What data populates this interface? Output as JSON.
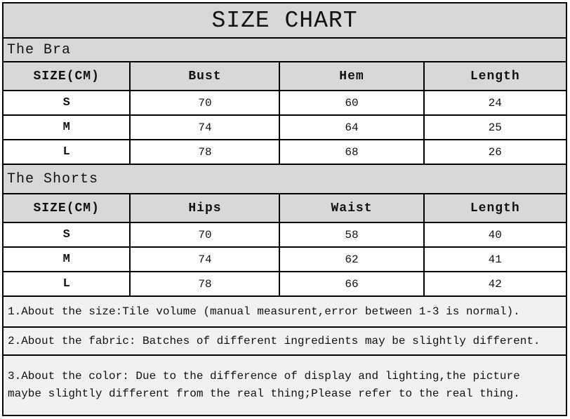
{
  "title": "SIZE CHART",
  "colors": {
    "header-bg": "#d8d8d8",
    "note-bg": "#f1f1f1",
    "row-bg": "#ffffff",
    "border": "#000000",
    "text": "#111111"
  },
  "sections": [
    {
      "name": "The Bra",
      "columns": [
        "SIZE(CM)",
        "Bust",
        "Hem",
        "Length"
      ],
      "rows": [
        [
          "S",
          "70",
          "60",
          "24"
        ],
        [
          "M",
          "74",
          "64",
          "25"
        ],
        [
          "L",
          "78",
          "68",
          "26"
        ]
      ]
    },
    {
      "name": "The Shorts",
      "columns": [
        "SIZE(CM)",
        "Hips",
        "Waist",
        "Length"
      ],
      "rows": [
        [
          "S",
          "70",
          "58",
          "40"
        ],
        [
          "M",
          "74",
          "62",
          "41"
        ],
        [
          "L",
          "78",
          "66",
          "42"
        ]
      ]
    }
  ],
  "notes": [
    "1.About the size:Tile volume (manual measurent,error between 1-3 is normal).",
    "2.About the fabric: Batches of different ingredients may be slightly different.",
    "3.About the color: Due to the difference of display and lighting,the picture\nmaybe slightly different from the real thing;Please refer to the real thing."
  ]
}
